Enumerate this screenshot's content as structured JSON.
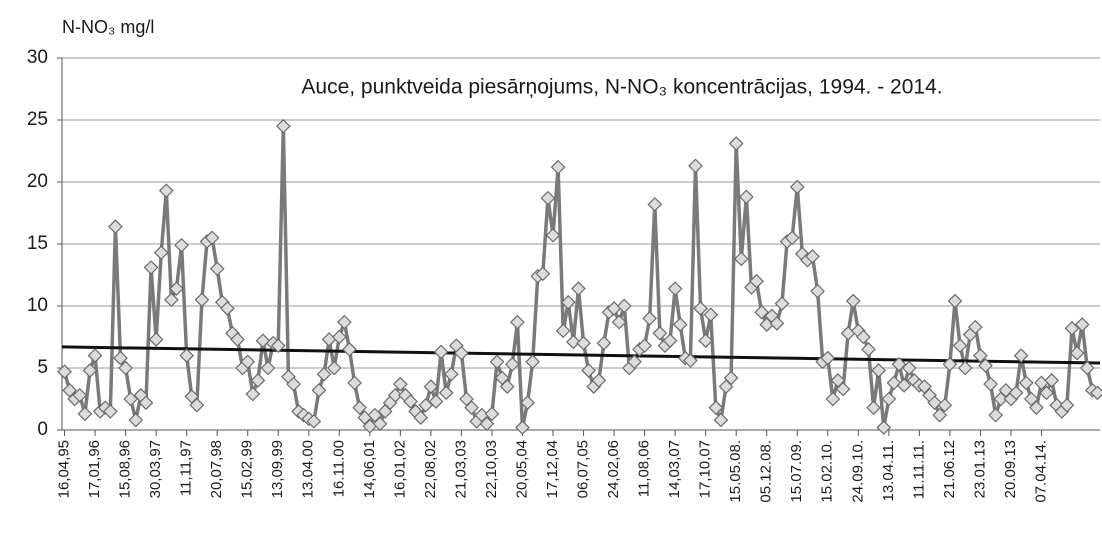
{
  "chart_data": {
    "type": "line",
    "title": "Auce, punktveida piesārņojums, N-NO₃ koncentrācijas, 1994. - 2014.",
    "y_label": "N-NO₃ mg/l",
    "categories": [
      "16,04,95",
      null,
      null,
      null,
      null,
      null,
      "17,01,96",
      null,
      null,
      null,
      null,
      null,
      "15,08,96",
      null,
      null,
      null,
      null,
      null,
      "30,03,97",
      null,
      null,
      null,
      null,
      null,
      "11,11,97",
      null,
      null,
      null,
      null,
      null,
      "20,07,98",
      null,
      null,
      null,
      null,
      null,
      "15,02,99",
      null,
      null,
      null,
      null,
      null,
      "13,09,99",
      null,
      null,
      null,
      null,
      null,
      "13.04.00",
      null,
      null,
      null,
      null,
      null,
      "16.11.00",
      null,
      null,
      null,
      null,
      null,
      "14,06,01",
      null,
      null,
      null,
      null,
      null,
      "16,01,02",
      null,
      null,
      null,
      null,
      null,
      "22,08,02",
      null,
      null,
      null,
      null,
      null,
      "21,03,03",
      null,
      null,
      null,
      null,
      null,
      "22,10,03",
      null,
      null,
      null,
      null,
      null,
      "20,05,04",
      null,
      null,
      null,
      null,
      null,
      "17,12,04",
      null,
      null,
      null,
      null,
      null,
      "06,07,05",
      null,
      null,
      null,
      null,
      null,
      "24,02,06",
      null,
      null,
      null,
      null,
      null,
      "11,08,06",
      null,
      null,
      null,
      null,
      null,
      "14,03,07",
      null,
      null,
      null,
      null,
      null,
      "17,10,07",
      null,
      null,
      null,
      null,
      null,
      "15.05.08.",
      null,
      null,
      null,
      null,
      null,
      "05.12.08.",
      null,
      null,
      null,
      null,
      null,
      "15.07.09.",
      null,
      null,
      null,
      null,
      null,
      "15.02.10.",
      null,
      null,
      null,
      null,
      null,
      "24.09.10.",
      null,
      null,
      null,
      null,
      null,
      "13.04.11.",
      null,
      null,
      null,
      null,
      null,
      "11.11.11.",
      null,
      null,
      null,
      null,
      null,
      "21.06.12",
      null,
      null,
      null,
      null,
      null,
      "23.01.13",
      null,
      null,
      null,
      null,
      null,
      "20.09.13",
      null,
      null,
      null,
      null,
      null,
      "07.04.14.",
      null,
      null,
      null,
      null,
      null,
      null,
      null,
      null,
      null,
      null,
      null
    ],
    "series": [
      {
        "color": "#7a7a7a",
        "marker_color": "#dcdcdc",
        "values": [
          4.7,
          3.2,
          2.5,
          2.8,
          1.3,
          4.8,
          6.0,
          1.5,
          1.8,
          1.5,
          16.4,
          5.8,
          5.0,
          2.5,
          0.8,
          2.8,
          2.2,
          13.1,
          7.3,
          14.3,
          19.3,
          10.5,
          11.4,
          14.9,
          6.0,
          2.7,
          2.0,
          10.5,
          15.2,
          15.5,
          13.0,
          10.3,
          9.8,
          7.8,
          7.3,
          5.0,
          5.5,
          2.9,
          4.0,
          7.2,
          5.0,
          7.0,
          6.8,
          24.5,
          4.3,
          3.7,
          1.5,
          1.2,
          0.9,
          0.7,
          3.2,
          4.5,
          7.3,
          5.0,
          7.5,
          8.7,
          6.5,
          3.8,
          1.8,
          1.0,
          0.3,
          1.2,
          0.5,
          1.5,
          2.2,
          2.8,
          3.7,
          2.8,
          2.3,
          1.5,
          1.0,
          2.0,
          3.5,
          2.3,
          6.3,
          3.0,
          4.5,
          6.8,
          6.2,
          2.5,
          1.8,
          0.7,
          1.2,
          0.5,
          1.3,
          5.5,
          4.2,
          3.5,
          5.3,
          8.7,
          0.2,
          2.2,
          5.5,
          12.4,
          12.6,
          18.7,
          15.7,
          21.2,
          8.0,
          10.3,
          7.1,
          11.4,
          7.0,
          4.8,
          3.5,
          4.0,
          7.0,
          9.5,
          9.8,
          8.7,
          10.0,
          5.0,
          5.5,
          6.5,
          6.8,
          9.0,
          18.2,
          7.8,
          6.8,
          7.2,
          11.4,
          8.5,
          5.8,
          5.6,
          21.3,
          9.8,
          7.2,
          9.3,
          1.8,
          0.8,
          3.5,
          4.2,
          23.1,
          13.8,
          18.8,
          11.5,
          12.0,
          9.5,
          8.5,
          9.2,
          8.6,
          10.2,
          15.2,
          15.5,
          19.6,
          14.2,
          13.7,
          14.0,
          11.2,
          5.5,
          5.8,
          2.5,
          4.0,
          3.3,
          7.8,
          10.4,
          8.0,
          7.5,
          6.5,
          1.8,
          4.8,
          0.2,
          2.5,
          3.8,
          5.3,
          3.6,
          5.0,
          4.0,
          3.6,
          3.5,
          2.8,
          2.2,
          1.2,
          2.0,
          5.3,
          10.4,
          6.8,
          5.0,
          7.7,
          8.3,
          6.0,
          5.2,
          3.7,
          1.2,
          2.5,
          3.2,
          2.5,
          3.0,
          6.0,
          3.8,
          2.5,
          1.8,
          3.8,
          3.0,
          4.0,
          2.0,
          1.5,
          2.0,
          8.2,
          6.2,
          8.5,
          5.0,
          3.2,
          3.0
        ]
      }
    ],
    "trendline": {
      "color": "#111111",
      "values": [
        6.7,
        5.4
      ]
    },
    "ylim": [
      0,
      30
    ],
    "yticks": [
      0,
      5,
      10,
      15,
      20,
      25,
      30
    ],
    "grid": true
  }
}
